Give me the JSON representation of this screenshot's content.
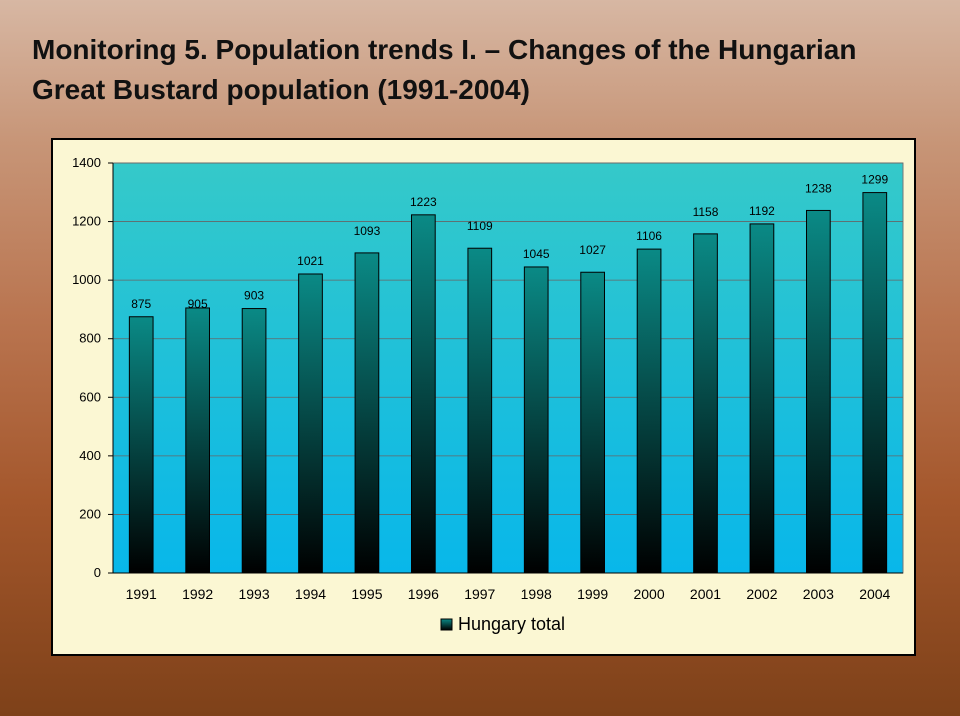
{
  "slide": {
    "title": "Monitoring 5. Population trends I.  – Changes of the Hungarian Great Bustard population (1991-2004)"
  },
  "colors": {
    "plot_top": "#35c9c9",
    "plot_bottom": "#08b7ea",
    "bar_top": "#0a8a86",
    "bar_bottom": "#000000",
    "frame_bg": "#fbf7d3"
  },
  "chart_data": {
    "type": "bar",
    "categories": [
      "1991",
      "1992",
      "1993",
      "1994",
      "1995",
      "1996",
      "1997",
      "1998",
      "1999",
      "2000",
      "2001",
      "2002",
      "2003",
      "2004"
    ],
    "series": [
      {
        "name": "Hungary total",
        "values": [
          875,
          905,
          903,
          1021,
          1093,
          1223,
          1109,
          1045,
          1027,
          1106,
          1158,
          1192,
          1238,
          1299
        ]
      }
    ],
    "ylim": [
      0,
      1400
    ],
    "yticks": [
      0,
      200,
      400,
      600,
      800,
      1000,
      1200,
      1400
    ],
    "grid": true,
    "legend": "bottom-center",
    "xlabel": "",
    "ylabel": ""
  }
}
